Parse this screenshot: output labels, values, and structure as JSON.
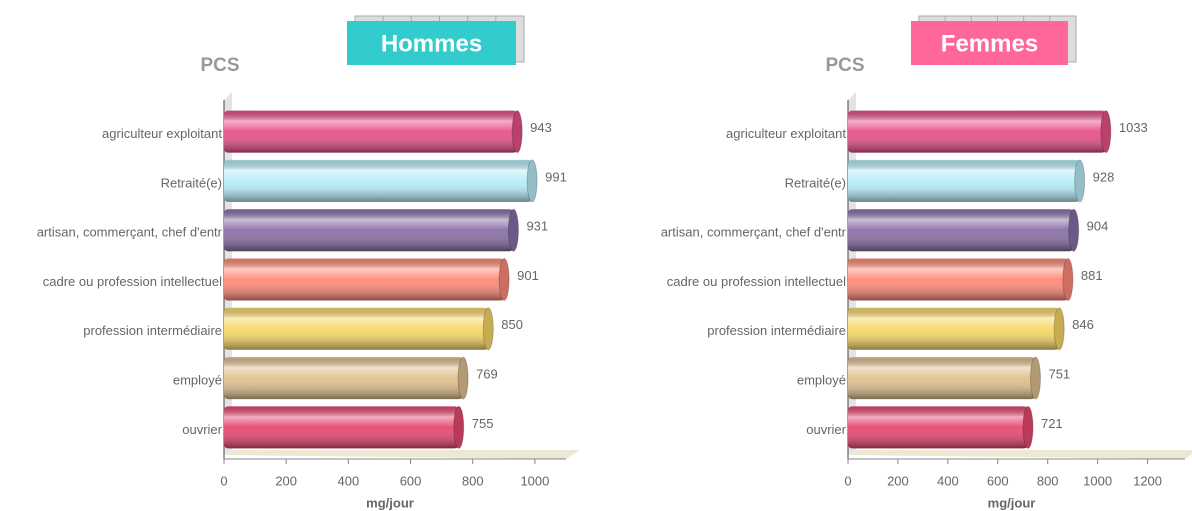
{
  "chart_data": [
    {
      "type": "bar",
      "title": "Hommes",
      "title_color": "#33cccc",
      "y_label": "PCS",
      "x_label": "mg/jour",
      "categories": [
        "agriculteur exploitant",
        "Retraité(e)",
        "artisan, commerçant, chef d'entr",
        "cadre ou profession intellectuel",
        "profession intermédiaire",
        "employé",
        "ouvrier"
      ],
      "values": [
        943,
        991,
        931,
        901,
        850,
        769,
        755
      ],
      "colors": [
        "#e8508a",
        "#b8eefa",
        "#8a6fa8",
        "#ff8a78",
        "#f8d868",
        "#e0c090",
        "#e84870"
      ],
      "xlim": [
        0,
        1100
      ],
      "xticks": [
        0,
        200,
        400,
        600,
        800,
        1000
      ]
    },
    {
      "type": "bar",
      "title": "Femmes",
      "title_color": "#ff6699",
      "y_label": "PCS",
      "x_label": "mg/jour",
      "categories": [
        "agriculteur exploitant",
        "Retraité(e)",
        "artisan, commerçant, chef d'entr",
        "cadre ou profession intellectuel",
        "profession intermédiaire",
        "employé",
        "ouvrier"
      ],
      "values": [
        1033,
        928,
        904,
        881,
        846,
        751,
        721
      ],
      "colors": [
        "#e8508a",
        "#b8eefa",
        "#8a6fa8",
        "#ff8a78",
        "#f8d868",
        "#e0c090",
        "#e84870"
      ],
      "xlim": [
        0,
        1350
      ],
      "xticks": [
        0,
        200,
        400,
        600,
        800,
        1000,
        1200
      ]
    }
  ]
}
